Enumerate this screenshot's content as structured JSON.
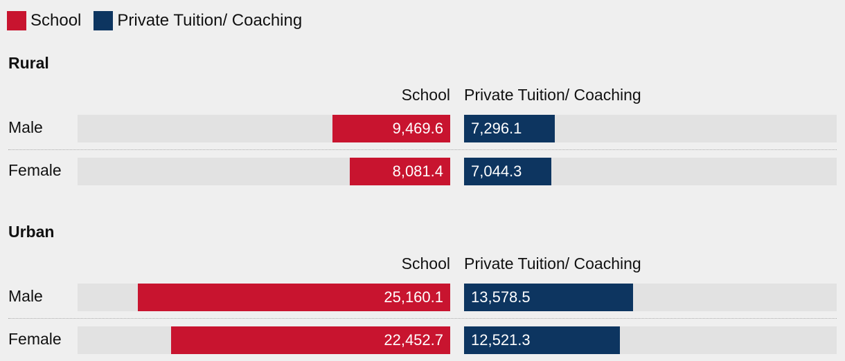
{
  "colors": {
    "school": "#c8142f",
    "private": "#0d3560"
  },
  "legend": [
    {
      "label": "School",
      "color": "#c8142f"
    },
    {
      "label": "Private Tuition/ Coaching",
      "color": "#0d3560"
    }
  ],
  "chart_data": {
    "type": "bar",
    "orientation": "horizontal-diverging",
    "series": [
      {
        "name": "School"
      },
      {
        "name": "Private Tuition/ Coaching"
      }
    ],
    "groups": [
      {
        "title": "Rural",
        "col_school": "School",
        "col_private": "Private Tuition/ Coaching",
        "rows": [
          {
            "label": "Male",
            "school": 9469.6,
            "school_label": "9,469.6",
            "private": 7296.1,
            "private_label": "7,296.1"
          },
          {
            "label": "Female",
            "school": 8081.4,
            "school_label": "8,081.4",
            "private": 7044.3,
            "private_label": "7,044.3"
          }
        ]
      },
      {
        "title": "Urban",
        "col_school": "School",
        "col_private": "Private Tuition/ Coaching",
        "rows": [
          {
            "label": "Male",
            "school": 25160.1,
            "school_label": "25,160.1",
            "private": 13578.5,
            "private_label": "13,578.5"
          },
          {
            "label": "Female",
            "school": 22452.7,
            "school_label": "22,452.7",
            "private": 12521.3,
            "private_label": "12,521.3"
          }
        ]
      }
    ],
    "axis_max": 30000
  }
}
